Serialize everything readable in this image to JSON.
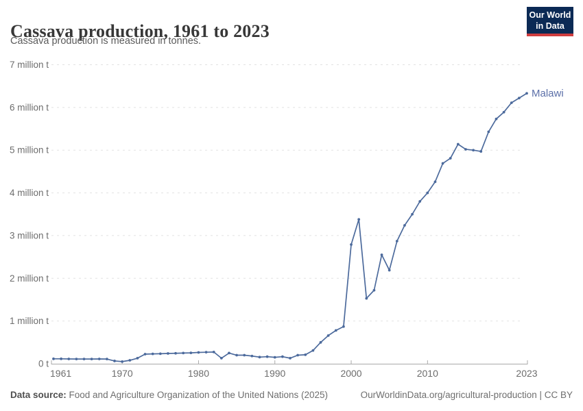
{
  "header": {
    "title": "Cassava production, 1961 to 2023",
    "subtitle": "Cassava production is measured in tonnes.",
    "logo": {
      "line1": "Our World",
      "line2": "in Data"
    }
  },
  "footer": {
    "source_label": "Data source:",
    "source_text": " Food and Agriculture Organization of the United Nations (2025)",
    "link_text": "OurWorldinData.org/agricultural-production | CC BY"
  },
  "colors": {
    "line": "#4C6A9C",
    "entity_label": "#5b6fa8",
    "gridline": "#e2e2e2",
    "axis": "#a9a9a9",
    "axis_text": "#6d6d6d",
    "logo_bg": "#0b2a55",
    "logo_bar": "#cf3d3f"
  },
  "chart_data": {
    "type": "line",
    "title": "Cassava production, 1961 to 2023",
    "subtitle": "Cassava production is measured in tonnes.",
    "xlabel": "",
    "ylabel": "",
    "values_unit": "million tonnes",
    "xlim": [
      1961,
      2023
    ],
    "ylim": [
      0,
      7
    ],
    "grid": "horizontal-dashed",
    "legend_position": "line-end-label",
    "x_ticks": [
      1961,
      1970,
      1980,
      1990,
      2000,
      2010,
      2023
    ],
    "y_ticks": [
      {
        "value": 0,
        "label": "0 t"
      },
      {
        "value": 1,
        "label": "1 million t"
      },
      {
        "value": 2,
        "label": "2 million t"
      },
      {
        "value": 3,
        "label": "3 million t"
      },
      {
        "value": 4,
        "label": "4 million t"
      },
      {
        "value": 5,
        "label": "5 million t"
      },
      {
        "value": 6,
        "label": "6 million t"
      },
      {
        "value": 7,
        "label": "7 million t"
      }
    ],
    "series": [
      {
        "name": "Malawi",
        "x": [
          1961,
          1962,
          1963,
          1964,
          1965,
          1966,
          1967,
          1968,
          1969,
          1970,
          1971,
          1972,
          1973,
          1974,
          1975,
          1976,
          1977,
          1978,
          1979,
          1980,
          1981,
          1982,
          1983,
          1984,
          1985,
          1986,
          1987,
          1988,
          1989,
          1990,
          1991,
          1992,
          1993,
          1994,
          1995,
          1996,
          1997,
          1998,
          1999,
          2000,
          2001,
          2002,
          2003,
          2004,
          2005,
          2006,
          2007,
          2008,
          2009,
          2010,
          2011,
          2012,
          2013,
          2014,
          2015,
          2016,
          2017,
          2018,
          2019,
          2020,
          2021,
          2022,
          2023
        ],
        "values": [
          0.115,
          0.115,
          0.112,
          0.11,
          0.11,
          0.11,
          0.112,
          0.11,
          0.065,
          0.05,
          0.08,
          0.13,
          0.225,
          0.23,
          0.235,
          0.24,
          0.245,
          0.25,
          0.255,
          0.265,
          0.27,
          0.275,
          0.13,
          0.25,
          0.2,
          0.2,
          0.18,
          0.155,
          0.165,
          0.15,
          0.165,
          0.13,
          0.2,
          0.21,
          0.31,
          0.5,
          0.66,
          0.78,
          0.87,
          2.79,
          3.38,
          1.53,
          1.72,
          2.55,
          2.19,
          2.87,
          3.24,
          3.5,
          3.8,
          4.0,
          4.26,
          4.69,
          4.81,
          5.14,
          5.02,
          5.0,
          4.97,
          5.43,
          5.73,
          5.89,
          6.11,
          6.22,
          6.33
        ]
      }
    ]
  }
}
